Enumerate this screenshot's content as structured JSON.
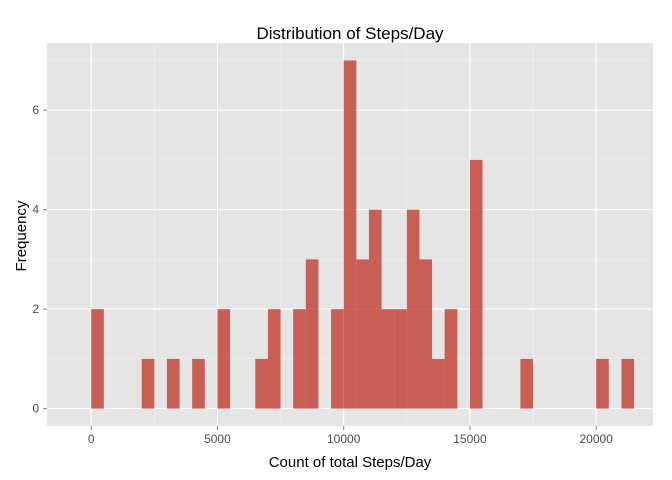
{
  "chart_data": {
    "type": "bar",
    "title": "Distribution of Steps/Day",
    "xlabel": "Count of total Steps/Day",
    "ylabel": "Frequency",
    "binwidth": 500,
    "xlim": [
      -1750,
      22250
    ],
    "ylim": [
      -0.35,
      7.35
    ],
    "x_ticks": [
      0,
      5000,
      10000,
      15000,
      20000
    ],
    "y_ticks": [
      0,
      2,
      4,
      6
    ],
    "bins": [
      {
        "x0": 0,
        "x1": 500,
        "count": 2
      },
      {
        "x0": 2000,
        "x1": 2500,
        "count": 1
      },
      {
        "x0": 3000,
        "x1": 3500,
        "count": 1
      },
      {
        "x0": 4000,
        "x1": 4500,
        "count": 1
      },
      {
        "x0": 5000,
        "x1": 5500,
        "count": 2
      },
      {
        "x0": 6500,
        "x1": 7000,
        "count": 1
      },
      {
        "x0": 7000,
        "x1": 7500,
        "count": 2
      },
      {
        "x0": 8000,
        "x1": 8500,
        "count": 2
      },
      {
        "x0": 8500,
        "x1": 9000,
        "count": 3
      },
      {
        "x0": 9500,
        "x1": 10000,
        "count": 2
      },
      {
        "x0": 10000,
        "x1": 10500,
        "count": 7
      },
      {
        "x0": 10500,
        "x1": 11000,
        "count": 3
      },
      {
        "x0": 11000,
        "x1": 11500,
        "count": 4
      },
      {
        "x0": 11500,
        "x1": 12000,
        "count": 2
      },
      {
        "x0": 12000,
        "x1": 12500,
        "count": 2
      },
      {
        "x0": 12500,
        "x1": 13000,
        "count": 4
      },
      {
        "x0": 13000,
        "x1": 13500,
        "count": 3
      },
      {
        "x0": 13500,
        "x1": 14000,
        "count": 1
      },
      {
        "x0": 14000,
        "x1": 14500,
        "count": 2
      },
      {
        "x0": 15000,
        "x1": 15500,
        "count": 5
      },
      {
        "x0": 17000,
        "x1": 17500,
        "count": 1
      },
      {
        "x0": 20000,
        "x1": 20500,
        "count": 1
      },
      {
        "x0": 21000,
        "x1": 21500,
        "count": 1
      }
    ],
    "grid": true,
    "legend": "none",
    "colors": {
      "panel_background": "#e5e5e5",
      "bar_fill": "#c0392b",
      "grid": "#ffffff"
    }
  }
}
